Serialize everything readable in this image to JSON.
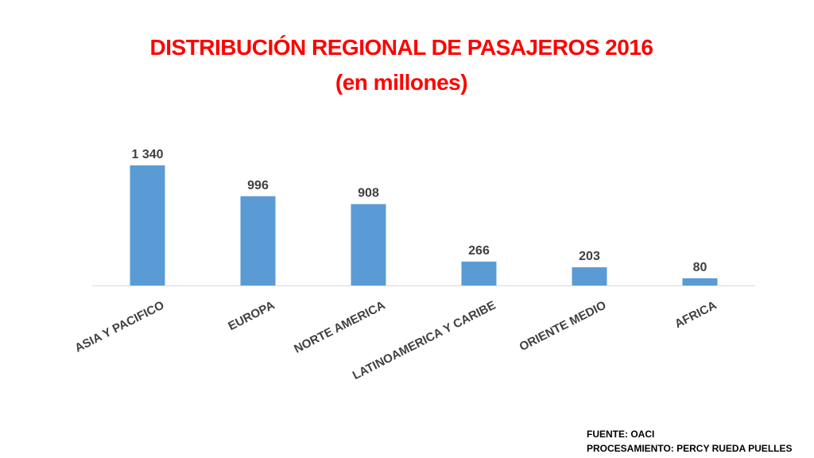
{
  "title": {
    "line1": "DISTRIBUCIÓN REGIONAL DE PASAJEROS 2016",
    "line2": "(en millones)"
  },
  "colors": {
    "title": "#ff0000",
    "bar": "#5b9bd5",
    "axis": "#d9d9d9",
    "text": "#404040"
  },
  "chart_data": {
    "type": "bar",
    "title": "DISTRIBUCIÓN REGIONAL DE PASAJEROS 2016 (en millones)",
    "categories": [
      "ASIA Y PACIFICO",
      "EUROPA",
      "NORTE AMERICA",
      "LATINOAMERICA Y CARIBE",
      "ORIENTE MEDIO",
      "AFRICA"
    ],
    "values": [
      1340,
      996,
      908,
      266,
      203,
      80
    ],
    "value_labels": [
      "1 340",
      "996",
      "908",
      "266",
      "203",
      "80"
    ],
    "xlabel": "",
    "ylabel": "",
    "ylim": [
      0,
      1340
    ],
    "grid": false,
    "legend": "none"
  },
  "source": {
    "line1": "FUENTE: OACI",
    "line2": "PROCESAMIENTO: PERCY RUEDA PUELLES"
  }
}
